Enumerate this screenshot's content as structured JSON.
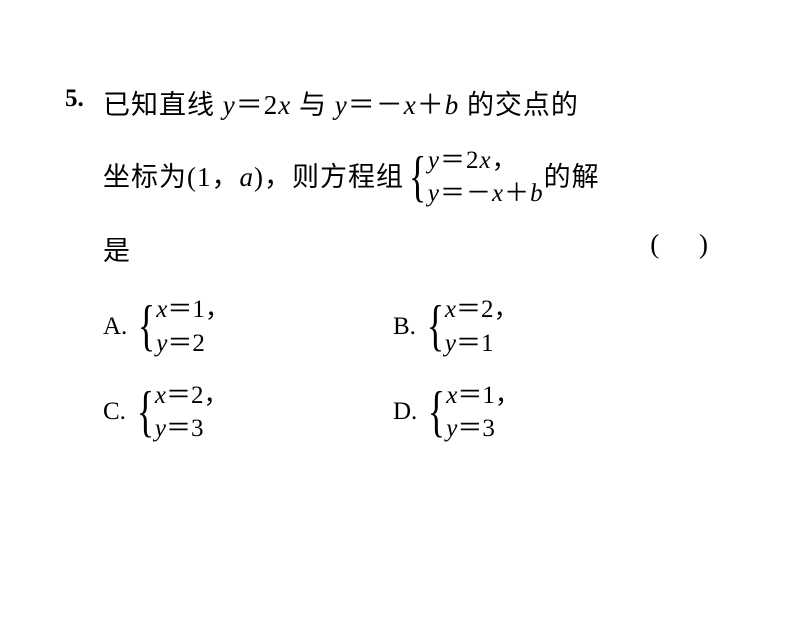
{
  "question": {
    "number": "5.",
    "line1_p1": "已知直线 ",
    "eq1_lhs": "y",
    "eq1_eq": "＝",
    "eq1_rhs": "2",
    "eq1_var": "x",
    "line1_p2": " 与 ",
    "eq2_lhs": "y",
    "eq2_eq": "＝",
    "eq2_neg": "－",
    "eq2_var": "x",
    "eq2_plus": "＋",
    "eq2_b": "b",
    "line1_p3": " 的交点的",
    "line2_p1": "坐标为",
    "line2_p2": "(",
    "line2_1": "1",
    "line2_comma": "，",
    "line2_a": "a",
    "line2_p3": ")",
    "line2_p4": "，则方程组",
    "line2_p5": "的解",
    "sys_row1_y": "y",
    "sys_row1_eq": "＝",
    "sys_row1_2": "2",
    "sys_row1_x": "x",
    "sys_row1_comma": "，",
    "sys_row2_y": "y",
    "sys_row2_eq": "＝",
    "sys_row2_neg": "－",
    "sys_row2_x": "x",
    "sys_row2_plus": "＋",
    "sys_row2_b": "b",
    "line3_text": "是",
    "paren_l": "(",
    "paren_r": ")"
  },
  "options": {
    "A": {
      "label": "A.",
      "r1_x": "x",
      "r1_eq": "＝",
      "r1_v": "1",
      "r1_c": "，",
      "r2_y": "y",
      "r2_eq": "＝",
      "r2_v": "2"
    },
    "B": {
      "label": "B.",
      "r1_x": "x",
      "r1_eq": "＝",
      "r1_v": "2",
      "r1_c": "，",
      "r2_y": "y",
      "r2_eq": "＝",
      "r2_v": "1"
    },
    "C": {
      "label": "C.",
      "r1_x": "x",
      "r1_eq": "＝",
      "r1_v": "2",
      "r1_c": "，",
      "r2_y": "y",
      "r2_eq": "＝",
      "r2_v": "3"
    },
    "D": {
      "label": "D.",
      "r1_x": "x",
      "r1_eq": "＝",
      "r1_v": "1",
      "r1_c": "，",
      "r2_y": "y",
      "r2_eq": "＝",
      "r2_v": "3"
    }
  },
  "style": {
    "background": "#ffffff",
    "text_color": "#000000",
    "body_fontsize": 27,
    "qnum_fontsize": 25,
    "option_fontsize": 25
  }
}
